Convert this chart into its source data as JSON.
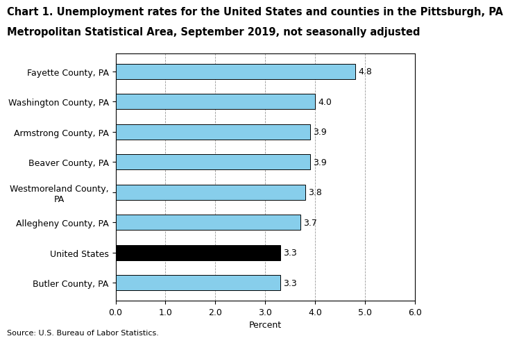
{
  "title_line1": "Chart 1. Unemployment rates for the United States and counties in the Pittsburgh, PA",
  "title_line2": "Metropolitan Statistical Area, September 2019, not seasonally adjusted",
  "categories": [
    "Butler County, PA",
    "United States",
    "Allegheny County, PA",
    "Westmoreland County,\nPA",
    "Beaver County, PA",
    "Armstrong County, PA",
    "Washington County, PA",
    "Fayette County, PA"
  ],
  "values": [
    3.3,
    3.3,
    3.7,
    3.8,
    3.9,
    3.9,
    4.0,
    4.8
  ],
  "bar_colors": [
    "#87CEEB",
    "#000000",
    "#87CEEB",
    "#87CEEB",
    "#87CEEB",
    "#87CEEB",
    "#87CEEB",
    "#87CEEB"
  ],
  "bar_edgecolor": "#000000",
  "xlim": [
    0,
    6.0
  ],
  "xticks": [
    0.0,
    1.0,
    2.0,
    3.0,
    4.0,
    5.0,
    6.0
  ],
  "xlabel": "Percent",
  "source": "Source: U.S. Bureau of Labor Statistics.",
  "grid_color": "#999999",
  "background_color": "#ffffff",
  "title_fontsize": 10.5,
  "label_fontsize": 9,
  "value_fontsize": 9,
  "source_fontsize": 8,
  "bar_height": 0.5
}
